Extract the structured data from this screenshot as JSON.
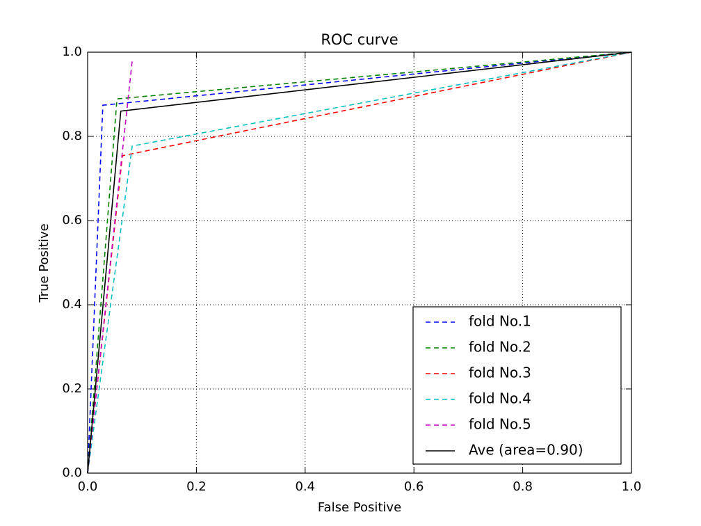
{
  "chart_data": {
    "type": "line",
    "title": "ROC curve",
    "x_label": "False Positive",
    "y_label": "True Positive",
    "xlim": [
      0,
      1
    ],
    "ylim": [
      0,
      1
    ],
    "xticks": [
      {
        "value": 0,
        "label": "0.0"
      },
      0.2,
      0.4,
      0.6,
      0.8,
      {
        "value": 1,
        "label": "1.0"
      }
    ],
    "yticks": [
      {
        "value": 0,
        "label": "0.0"
      },
      0.2,
      0.4,
      0.6,
      0.8,
      {
        "value": 1,
        "label": "1.0"
      }
    ],
    "grid": true,
    "legend": "lower right",
    "series": [
      {
        "name": "fold No.1",
        "color": "#0000ff",
        "dash": true,
        "x": [
          0,
          0.028,
          1
        ],
        "values": [
          0,
          0.874,
          1
        ]
      },
      {
        "name": "fold No.2",
        "color": "#008000",
        "dash": true,
        "x": [
          0,
          0.054,
          1
        ],
        "values": [
          0,
          0.889,
          1
        ]
      },
      {
        "name": "fold No.3",
        "color": "#ff0000",
        "dash": true,
        "x": [
          0,
          0.064,
          1
        ],
        "values": [
          0,
          0.754,
          1
        ]
      },
      {
        "name": "fold No.4",
        "color": "#00bfbf",
        "dash": true,
        "x": [
          0,
          0.082,
          1
        ],
        "values": [
          0,
          0.777,
          1
        ]
      },
      {
        "name": "fold No.5",
        "color": "#bf00bf",
        "dash": true,
        "x": [
          0,
          0.082
        ],
        "values": [
          0,
          0.98
        ]
      },
      {
        "name": "Ave (area=0.90)",
        "color": "#000000",
        "dash": false,
        "x": [
          0,
          0.061,
          1
        ],
        "values": [
          0,
          0.86,
          1
        ]
      }
    ]
  }
}
